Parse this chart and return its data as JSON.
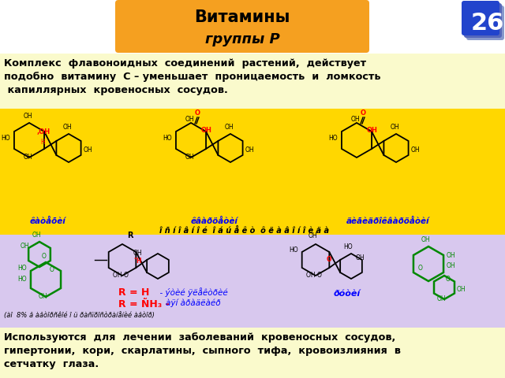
{
  "title_line1": "Витамины",
  "title_line2": "группы Р",
  "title_bg": "#F5A020",
  "title_color": "#000000",
  "slide_number": "26",
  "slide_num_bg1": "#6677BB",
  "slide_num_bg2": "#4455AA",
  "slide_num_bg3": "#2244CC",
  "slide_number_color": "#FFFFFF",
  "text1_line1": "Комплекс  флавоноидных  соединений  растений,  действует",
  "text1_line2": "подобно  витамину  С – уменьшает  проницаемость  и  ломкость",
  "text1_line3": " капиллярных  кровеносных  сосудов.",
  "text1_bg": "#FAFACC",
  "yellow_box_bg": "#FFD700",
  "purple_box_bg": "#D8C8EE",
  "label1": "êàòåõèí",
  "label2": "êâàðöåòèí",
  "label3": "äèãèäðîêâàðöåòèí",
  "bottom_label": "îñíîâíîé îáúåêò ôëàâîíîèäà",
  "text2_line1": "Используются  для  лечении  заболеваний  кровеносных  сосудов,",
  "text2_line2": "гипертонии,  кори,  скарлатины,  сыпного  тифа,  кровоизлияния  в",
  "text2_line3": "сетчатку  глаза.",
  "text2_bg": "#FAFACC",
  "bg_color": "#FFFFFF"
}
